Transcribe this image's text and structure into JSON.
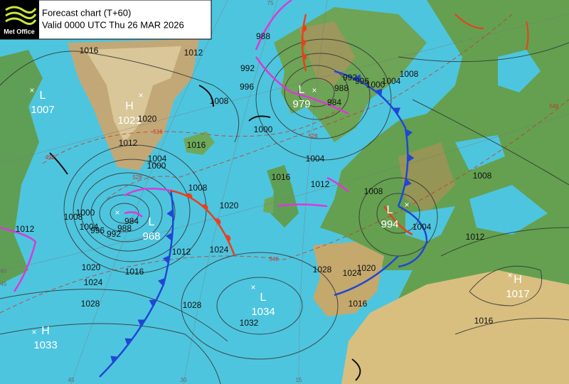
{
  "header": {
    "logo": "Met Office",
    "title": "Forecast chart (T+60)",
    "valid": "Valid 0000 UTC Thu 26 MAR 2026"
  },
  "centers": [
    {
      "type": "L",
      "value": 1007
    },
    {
      "type": "H",
      "value": 1021
    },
    {
      "type": "L",
      "value": 979
    },
    {
      "type": "L",
      "value": 968
    },
    {
      "type": "L",
      "value": 994
    },
    {
      "type": "H",
      "value": 1017
    },
    {
      "type": "L",
      "value": 1034
    },
    {
      "type": "H",
      "value": 1033
    }
  ],
  "isobar_labels": [
    1016,
    1012,
    1008,
    996,
    992,
    988,
    1000,
    1004,
    1012,
    1016,
    988,
    984,
    992,
    996,
    1000,
    1004,
    1008,
    1008,
    1012,
    1016,
    1004,
    1008,
    1020,
    1024,
    1028,
    1016,
    1032,
    1028,
    1024,
    1020,
    1012,
    1008,
    1016,
    1004,
    1000,
    1012,
    1020,
    1008,
    1004,
    1000,
    996,
    992,
    988,
    984,
    1012,
    1020,
    1016,
    1024,
    1028
  ],
  "thickness_labels": [
    516,
    528,
    528,
    492,
    546,
    546
  ],
  "grid_labels": [
    45,
    30,
    15,
    75,
    60,
    45
  ]
}
